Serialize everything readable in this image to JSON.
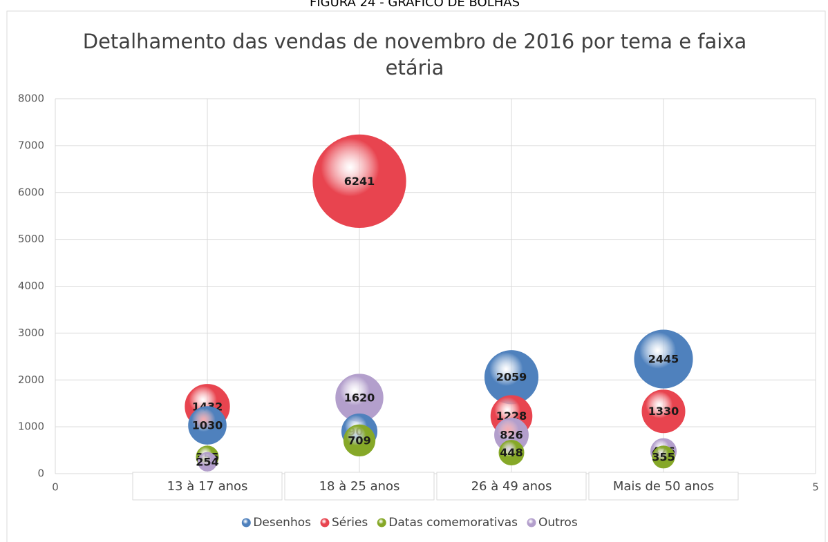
{
  "caption": "FIGURA 24 - GRÁFICO DE BOLHAS",
  "chart_data": {
    "type": "bubble",
    "title": "Detalhamento das vendas de novembro de 2016 por tema e faixa etária",
    "x": [
      1,
      2,
      3,
      4
    ],
    "categories": [
      "13 à 17 anos",
      "18 à 25 anos",
      "26 à 49 anos",
      "Mais de 50 anos"
    ],
    "series": [
      {
        "name": "Desenhos",
        "color": "#4f81bd",
        "values": [
          1030,
          901,
          2059,
          2445
        ]
      },
      {
        "name": "Séries",
        "color": "#e8444f",
        "values": [
          1432,
          6241,
          1228,
          1330
        ]
      },
      {
        "name": "Datas comemorativas",
        "color": "#86a828",
        "values": [
          355,
          709,
          448,
          355
        ]
      },
      {
        "name": "Outros",
        "color": "#b39fcc",
        "values": [
          254,
          1620,
          826,
          476
        ]
      }
    ],
    "xlim": [
      0,
      5
    ],
    "xticks": [
      0,
      1,
      2,
      3,
      4,
      5
    ],
    "ylim": [
      0,
      8000
    ],
    "yticks": [
      0,
      1000,
      2000,
      3000,
      4000,
      5000,
      6000,
      7000,
      8000
    ],
    "grid": true,
    "legend": "bottom"
  }
}
